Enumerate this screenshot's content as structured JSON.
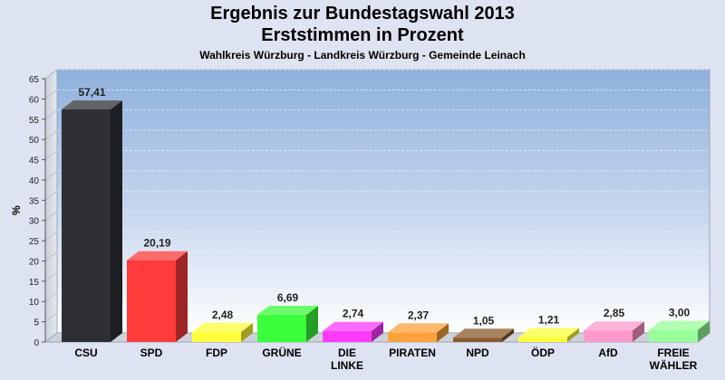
{
  "chart_data": {
    "type": "bar",
    "title": "Ergebnis zur Bundestagswahl 2013",
    "subtitle": "Erststimmen in Prozent",
    "subsubtitle": "Wahlkreis Würzburg - Landkreis Würzburg - Gemeinde Leinach",
    "ylabel": "%",
    "xlabel": "",
    "ylim": [
      0,
      65
    ],
    "yticks": [
      0,
      5,
      10,
      15,
      20,
      25,
      30,
      35,
      40,
      45,
      50,
      55,
      60,
      65
    ],
    "grid": true,
    "legend": "none",
    "categories": [
      [
        "CSU"
      ],
      [
        "SPD"
      ],
      [
        "FDP"
      ],
      [
        "GRÜNE"
      ],
      [
        "DIE",
        "LINKE"
      ],
      [
        "PIRATEN"
      ],
      [
        "NPD"
      ],
      [
        "ÖDP"
      ],
      [
        "AfD"
      ],
      [
        "FREIE",
        "WÄHLER"
      ]
    ],
    "values": [
      57.41,
      20.19,
      2.48,
      6.69,
      2.74,
      2.37,
      1.05,
      1.21,
      2.85,
      3.0
    ],
    "value_labels": [
      "57,41",
      "20,19",
      "2,48",
      "6,69",
      "2,74",
      "2,37",
      "1,05",
      "1,21",
      "2,85",
      "3,00"
    ],
    "colors": [
      "#2e3035",
      "#ff3b3b",
      "#ffff3b",
      "#3bff3b",
      "#ff3bff",
      "#ffa23b",
      "#8b5a2b",
      "#ffff3b",
      "#ff99cc",
      "#99ff99"
    ]
  }
}
